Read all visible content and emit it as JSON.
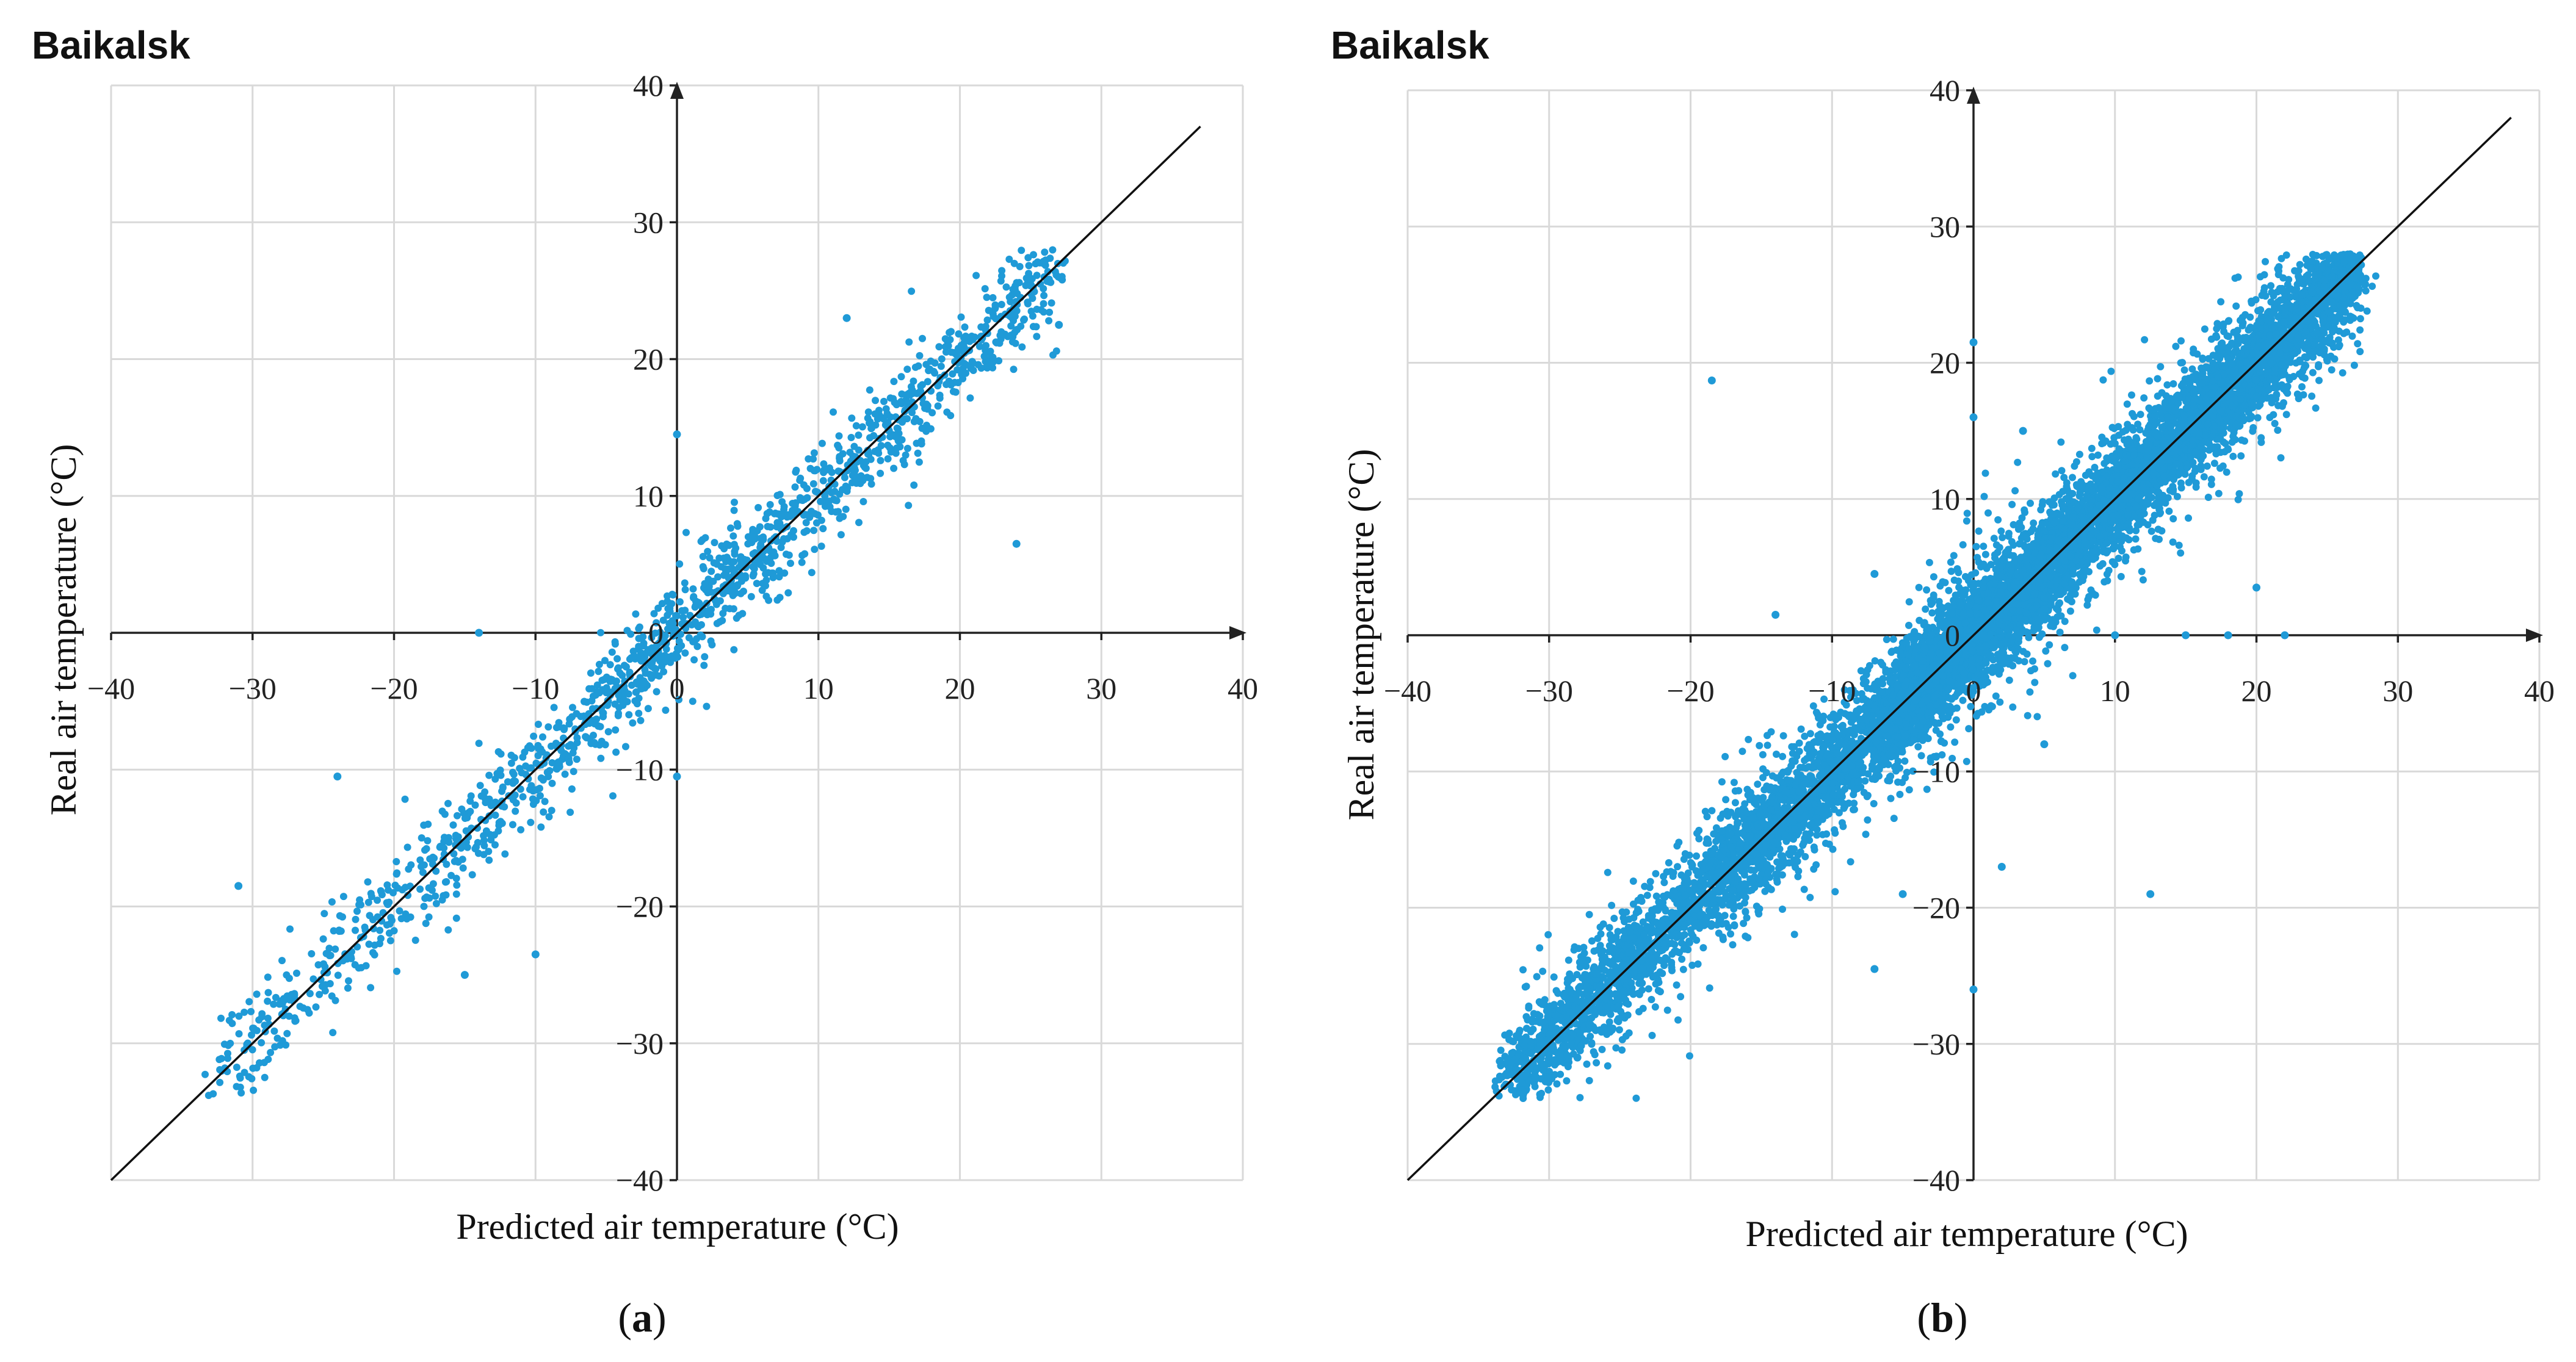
{
  "chart_data": [
    {
      "type": "scatter",
      "panel_label": "a",
      "title": "Baikalsk",
      "xlabel": "Predicted air temperature (°C)",
      "ylabel": "Real air temperature (°C)",
      "xlim": [
        -40,
        40
      ],
      "ylim": [
        -40,
        40
      ],
      "x_ticks": [
        -40,
        -30,
        -20,
        -10,
        0,
        10,
        20,
        30,
        40
      ],
      "y_ticks": [
        -40,
        -30,
        -20,
        -10,
        0,
        10,
        20,
        30,
        40
      ],
      "grid": true,
      "axes_cross_at_origin": true,
      "reference_line": {
        "x": [
          -40,
          37
        ],
        "y": [
          -40,
          37
        ]
      },
      "point_color": "#1f9ad7",
      "approx_point_count": 1500,
      "residual_sd": 2.0,
      "outliers": [
        {
          "x": 24,
          "y": 6.5
        },
        {
          "x": -31,
          "y": -18.5
        },
        {
          "x": -10,
          "y": -23.5
        },
        {
          "x": -15,
          "y": -25
        },
        {
          "x": 0,
          "y": 14.5
        },
        {
          "x": 12,
          "y": 23
        },
        {
          "x": -14,
          "y": 0
        },
        {
          "x": -24,
          "y": -10.5
        },
        {
          "x": 27,
          "y": 22.5
        },
        {
          "x": 0,
          "y": -10.5
        }
      ]
    },
    {
      "type": "scatter",
      "panel_label": "b",
      "title": "Baikalsk",
      "xlabel": "Predicted air temperature (°C)",
      "ylabel": "Real air temperature (°C)",
      "xlim": [
        -40,
        40
      ],
      "ylim": [
        -40,
        40
      ],
      "x_ticks": [
        -40,
        -30,
        -20,
        -10,
        0,
        10,
        20,
        30,
        40
      ],
      "y_ticks": [
        -40,
        -30,
        -20,
        -10,
        0,
        10,
        20,
        30,
        40
      ],
      "grid": true,
      "axes_cross_at_origin": true,
      "reference_line": {
        "x": [
          -40,
          38
        ],
        "y": [
          -40,
          38
        ]
      },
      "point_color": "#1f9ad7",
      "approx_point_count": 9000,
      "residual_sd": 2.3,
      "outliers": [
        {
          "x": -18.5,
          "y": 18.7
        },
        {
          "x": 12.5,
          "y": -19
        },
        {
          "x": 0,
          "y": -26
        },
        {
          "x": 0,
          "y": 21.5
        },
        {
          "x": 0,
          "y": 16
        },
        {
          "x": 10,
          "y": 0
        },
        {
          "x": 15,
          "y": 0
        },
        {
          "x": 18,
          "y": 0
        },
        {
          "x": 22,
          "y": 0
        },
        {
          "x": 20,
          "y": 3.5
        },
        {
          "x": -14,
          "y": 1.5
        },
        {
          "x": -7,
          "y": 4.5
        },
        {
          "x": 2,
          "y": -17
        },
        {
          "x": 5,
          "y": -8
        },
        {
          "x": 3.5,
          "y": 15
        },
        {
          "x": -5,
          "y": -19
        },
        {
          "x": -7,
          "y": -24.5
        },
        {
          "x": -28,
          "y": -31
        }
      ]
    }
  ]
}
